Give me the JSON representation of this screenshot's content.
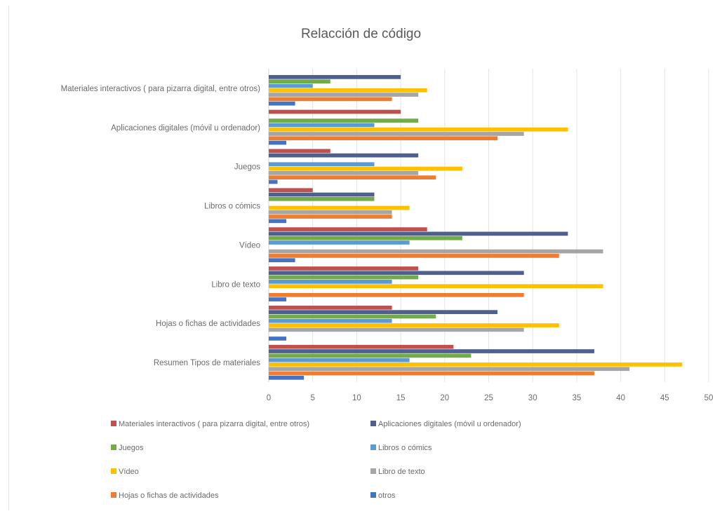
{
  "chart_data": {
    "type": "bar",
    "orientation": "horizontal",
    "title": "Relacción de código",
    "xlabel": "",
    "ylabel": "",
    "xlim": [
      0,
      50
    ],
    "x_ticks": [
      "0",
      "5",
      "10",
      "15",
      "20",
      "25",
      "30",
      "35",
      "40",
      "45",
      "50"
    ],
    "grid": true,
    "legend_position": "bottom",
    "categories": [
      "Materiales interactivos ( para pizarra digital, entre otros)",
      "Aplicaciones digitales  (móvil u ordenador)",
      "Juegos",
      "Libros o cómics",
      "Vídeo",
      "Libro de texto",
      "Hojas o fichas de actividades",
      "Resumen Tipos de materiales"
    ],
    "series": [
      {
        "name": "Materiales interactivos ( para pizarra digital, entre otros)",
        "color": "#c0504d",
        "values": [
          0,
          15,
          7,
          5,
          18,
          17,
          14,
          21
        ]
      },
      {
        "name": "Aplicaciones digitales  (móvil u ordenador)",
        "color": "#4f5f8f",
        "values": [
          15,
          0,
          17,
          12,
          34,
          29,
          26,
          37
        ]
      },
      {
        "name": "Juegos",
        "color": "#70ad47",
        "values": [
          7,
          17,
          0,
          12,
          22,
          17,
          19,
          23
        ]
      },
      {
        "name": "Libros o cómics",
        "color": "#5b9bd5",
        "values": [
          5,
          12,
          12,
          0,
          16,
          14,
          14,
          16
        ]
      },
      {
        "name": "Vídeo",
        "color": "#ffc000",
        "values": [
          18,
          34,
          22,
          16,
          0,
          38,
          33,
          47
        ]
      },
      {
        "name": "Libro de texto",
        "color": "#a5a5a5",
        "values": [
          17,
          29,
          17,
          14,
          38,
          0,
          29,
          41
        ]
      },
      {
        "name": "Hojas o fichas de actividades",
        "color": "#ed7d31",
        "values": [
          14,
          26,
          19,
          14,
          33,
          29,
          0,
          37
        ]
      },
      {
        "name": "otros",
        "color": "#4472c4",
        "values": [
          3,
          2,
          1,
          2,
          3,
          2,
          2,
          4
        ]
      }
    ]
  }
}
